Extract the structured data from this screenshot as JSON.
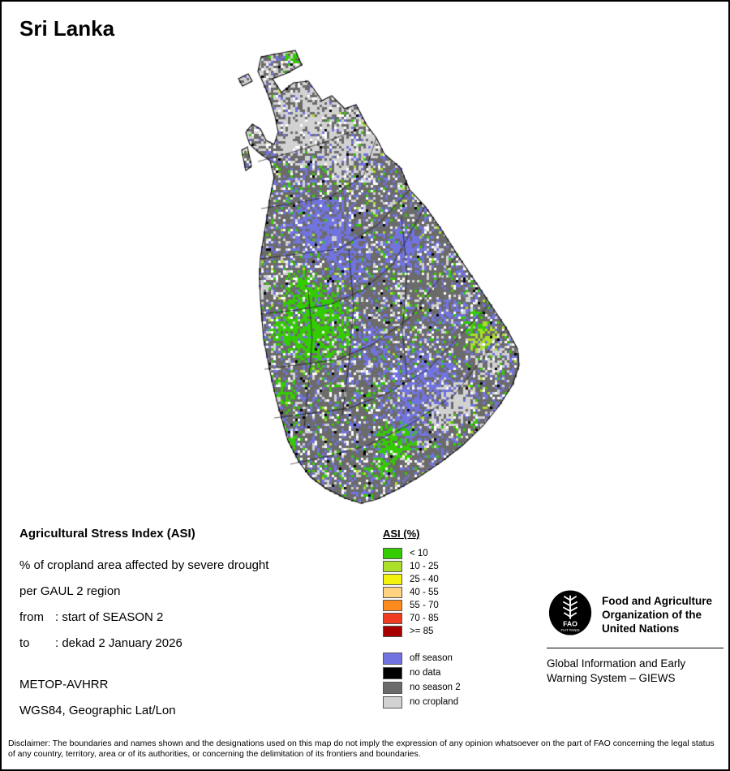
{
  "title": "Sri Lanka",
  "info": {
    "heading": "Agricultural Stress Index (ASI)",
    "line1": "% of cropland area affected by severe drought",
    "line2": "per GAUL 2 region",
    "from_label": "from",
    "from_value": ": start of SEASON 2",
    "to_label": "to",
    "to_value": ": dekad 2 January 2026",
    "sensor": "METOP-AVHRR",
    "projection": "WGS84, Geographic Lat/Lon"
  },
  "legend": {
    "title": "ASI (%)",
    "classes": [
      {
        "label": "< 10",
        "color": "#33cc00"
      },
      {
        "label": "10 - 25",
        "color": "#aade28"
      },
      {
        "label": "25 - 40",
        "color": "#f2f20c"
      },
      {
        "label": "40 - 55",
        "color": "#ffd37f"
      },
      {
        "label": "55 - 70",
        "color": "#ff8b1f"
      },
      {
        "label": "70 - 85",
        "color": "#f03b20"
      },
      {
        "label": ">= 85",
        "color": "#a80000"
      }
    ],
    "extra": [
      {
        "label": "off season",
        "color": "#7173e0"
      },
      {
        "label": "no data",
        "color": "#000000"
      },
      {
        "label": "no season 2",
        "color": "#6b6b6b"
      },
      {
        "label": "no cropland",
        "color": "#d2d2d2"
      }
    ]
  },
  "fao": {
    "logo_text": "FAO",
    "logo_motto": "FIAT PANIS",
    "org_line1": "Food and Agriculture",
    "org_line2": "Organization of the",
    "org_line3": "United Nations",
    "giews_line1": "Global Information and Early",
    "giews_line2": "Warning System – GIEWS"
  },
  "disclaimer": "Disclaimer: The boundaries and names shown and the designations used on this map do not imply the expression of any opinion whatsoever on the part of FAO concerning the legal status of any country, territory, area or of its authorities, or concerning the delimitation of its frontiers and boundaries.",
  "map": {
    "region": "Sri Lanka",
    "colors": {
      "green": "#33cc00",
      "yellowgreen": "#aade28",
      "off_season": "#7173e0",
      "no_data": "#000000",
      "no_season2": "#6b6b6b",
      "no_cropland": "#d2d2d2",
      "white": "#ffffff"
    }
  }
}
